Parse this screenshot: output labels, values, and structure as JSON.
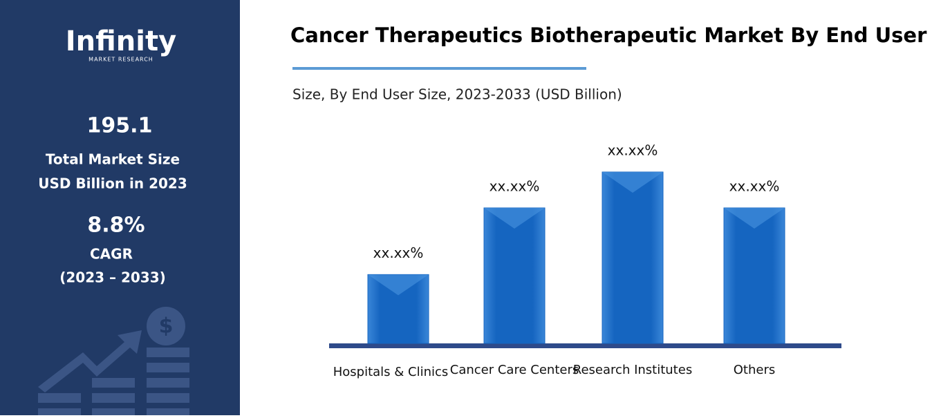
{
  "sidebar": {
    "logo": "Infinity",
    "logo_sub": "MARKET RESEARCH",
    "market_size": "195.1",
    "market_size_label_1": "Total Market Size",
    "market_size_label_2": "USD Billion in 2023",
    "cagr": "8.8%",
    "cagr_label": "CAGR",
    "cagr_period": "(2023 – 2033)"
  },
  "chart_data": {
    "type": "bar",
    "title": "Cancer Therapeutics Biotherapeutic Market By End User",
    "subtitle": "Size, By End User Size, 2023-2033 (USD Billion)",
    "categories": [
      "Hospitals & Clinics",
      "Cancer Care Centers",
      "Research Institutes",
      "Others"
    ],
    "values": [
      94,
      185,
      234,
      185
    ],
    "value_labels": [
      "xx.xx%",
      "xx.xx%",
      "xx.xx%",
      "xx.xx%"
    ],
    "color": "#1565c0",
    "ylim": [
      0,
      250
    ]
  }
}
